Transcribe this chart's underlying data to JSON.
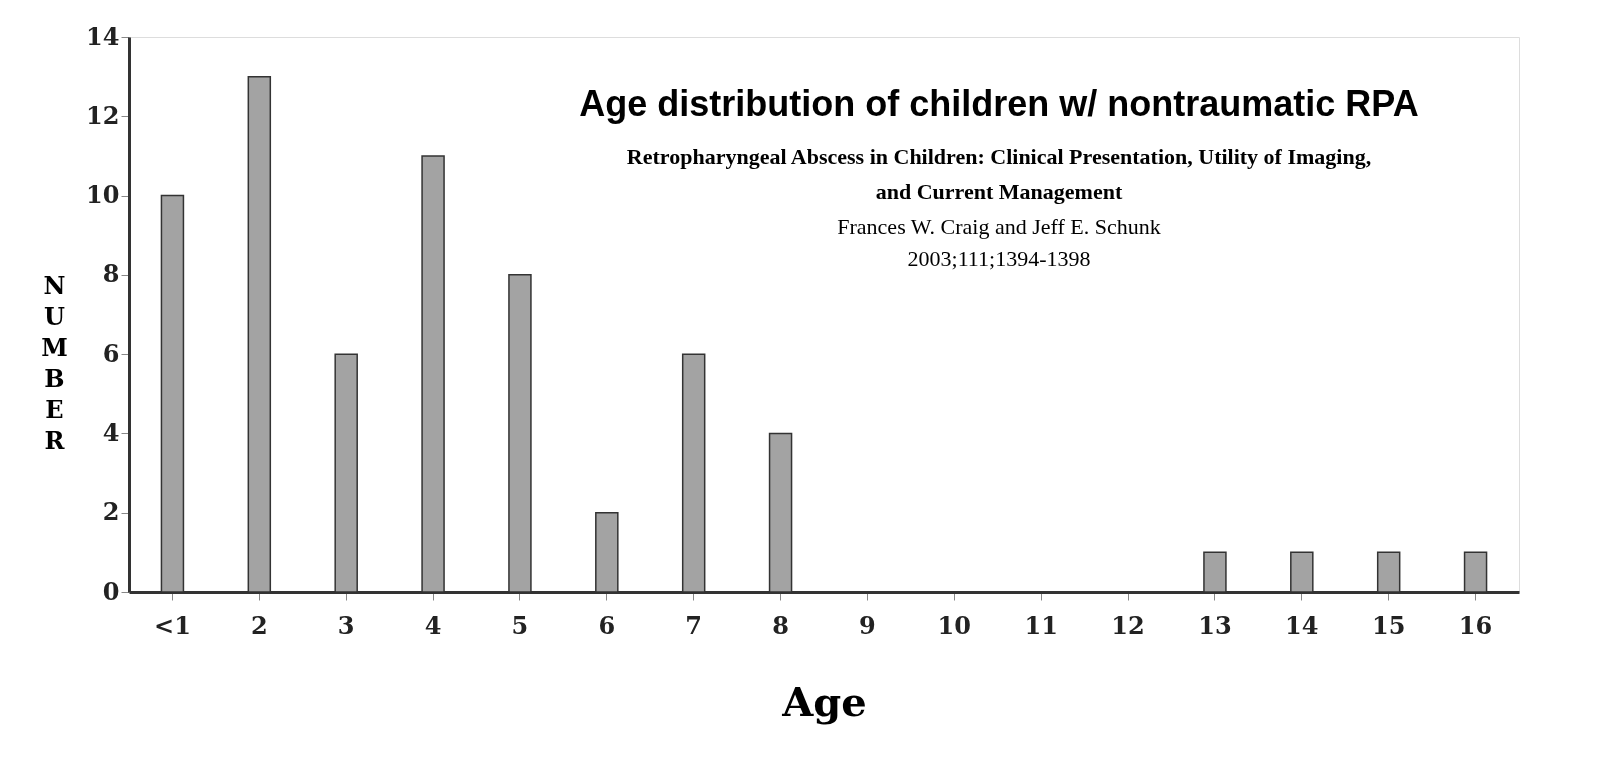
{
  "chart_data": {
    "type": "bar",
    "title": "Age distribution of children w/ nontraumatic RPA",
    "annotations": [
      "Retropharyngeal Abscess in Children: Clinical Presentation, Utility of Imaging,",
      "and Current Management",
      "Frances W. Craig and Jeff E. Schunk",
      "2003;111;1394-1398"
    ],
    "xlabel": "Age",
    "ylabel": "NUMBER",
    "categories": [
      "<1",
      "2",
      "3",
      "4",
      "5",
      "6",
      "7",
      "8",
      "9",
      "10",
      "11",
      "12",
      "13",
      "14",
      "15",
      "16"
    ],
    "values": [
      10,
      13,
      6,
      11,
      8,
      2,
      6,
      4,
      0,
      0,
      0,
      0,
      1,
      1,
      1,
      1
    ],
    "color": "#a3a3a3",
    "ylim": [
      0,
      14
    ],
    "yticks": [
      0,
      2,
      4,
      6,
      8,
      10,
      12,
      14
    ],
    "grid": false
  }
}
